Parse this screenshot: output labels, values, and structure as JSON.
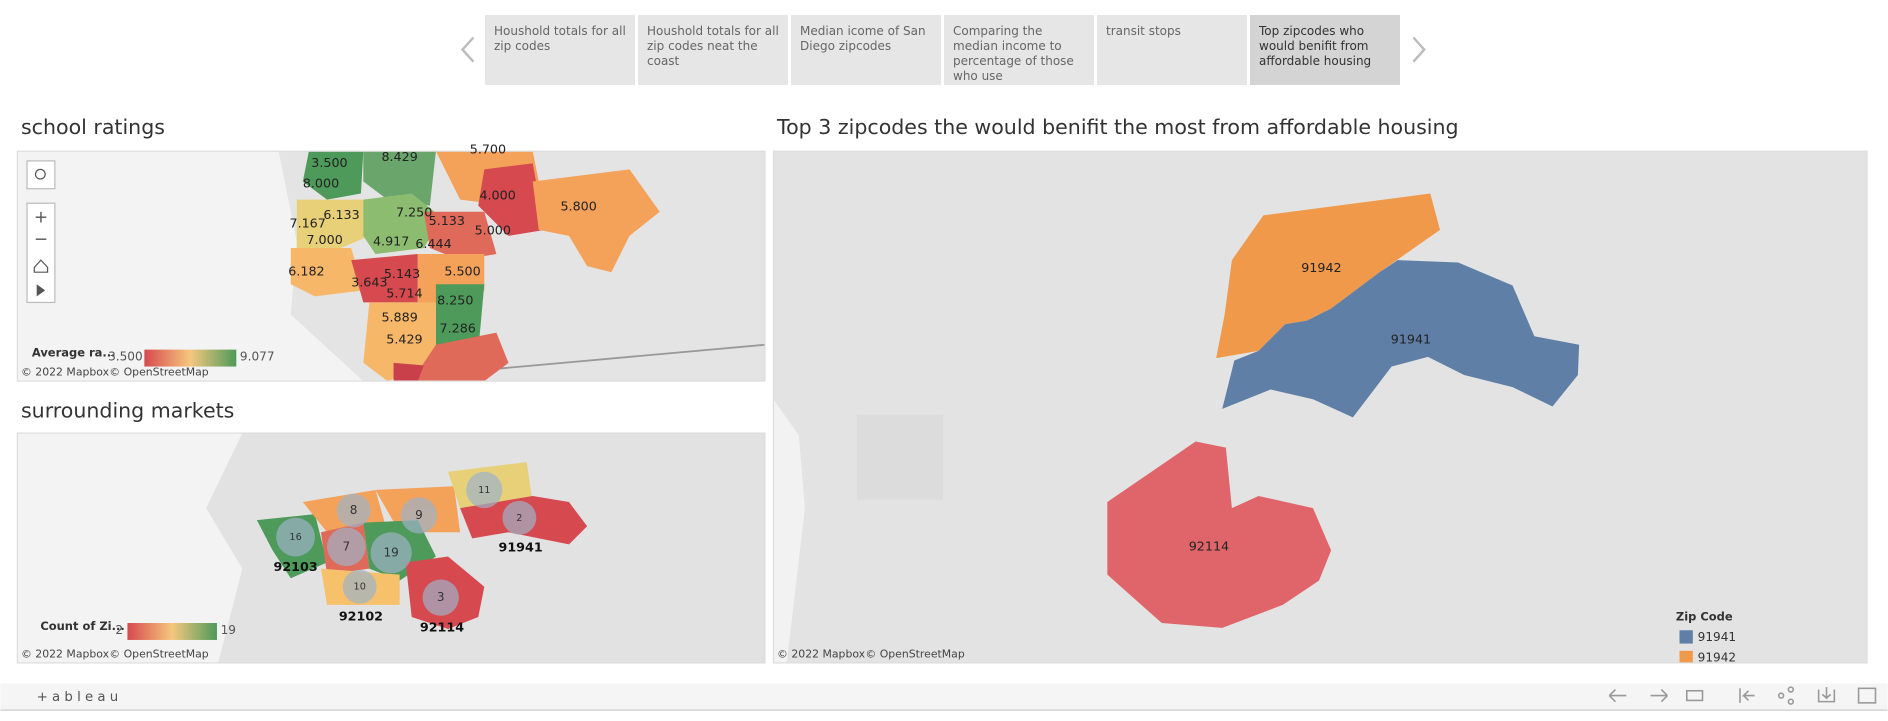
{
  "tabs": [
    "Houshold totals for all zip codes",
    "Houshold totals for all zip codes neat the coast",
    "Median icome of San Diego zipcodes",
    "Comparing the median income to percentage of those who use",
    "transit stops",
    "Top zipcodes who would benifit from affordable housing"
  ],
  "school_ratings": {
    "title": "school ratings",
    "labels": [
      "3.500",
      "8.429",
      "5.700",
      "8.000",
      "4.000",
      "6.133",
      "7.250",
      "5.133",
      "5.800",
      "7.167",
      "5.000",
      "7.000",
      "4.917",
      "6.444",
      "6.182",
      "5.143",
      "5.500",
      "3.643",
      "5.714",
      "8.250",
      "5.889",
      "7.286",
      "5.429"
    ],
    "legend": {
      "title": "Average ra...",
      "min": "3.500",
      "max": "9.077"
    },
    "attribution": [
      "© 2022 Mapbox",
      "© OpenStreetMap"
    ]
  },
  "surrounding_markets": {
    "title": "surrounding markets",
    "counts": [
      "8",
      "9",
      "11",
      "2",
      "16",
      "7",
      "19",
      "10",
      "3"
    ],
    "zip_labels": [
      "92103",
      "91941",
      "92102",
      "92114"
    ],
    "legend": {
      "title": "Count of Zi...",
      "min": "2",
      "max": "19"
    },
    "attribution": [
      "© 2022 Mapbox",
      "© OpenStreetMap"
    ]
  },
  "affordable_housing": {
    "title": "Top 3 zipcodes the would benifit the most from affordable housing",
    "zip_labels": [
      "91942",
      "91941",
      "92114"
    ],
    "legend": {
      "title": "Zip Code",
      "items": [
        "91941",
        "91942"
      ]
    },
    "attribution": [
      "© 2022 Mapbox",
      "© OpenStreetMap"
    ]
  },
  "footer": {
    "logo": "+ a b l e a u"
  }
}
